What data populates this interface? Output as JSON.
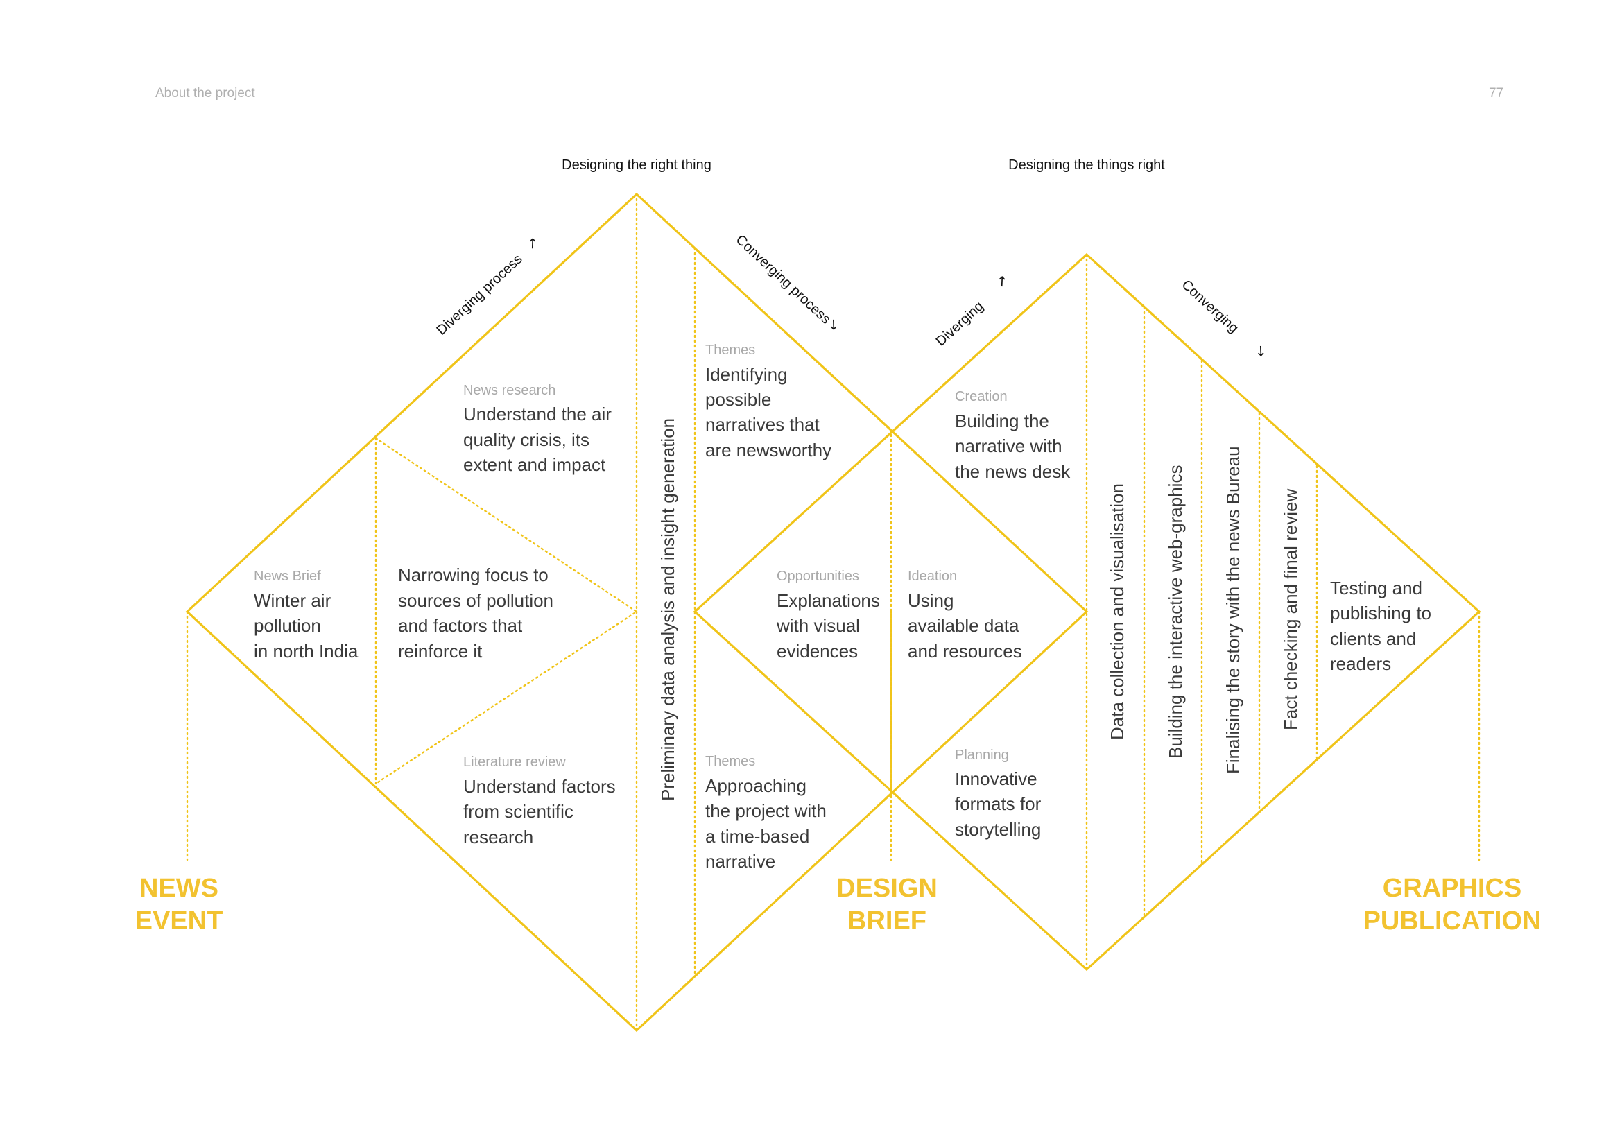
{
  "header": {
    "section": "About the project",
    "page_number": "77"
  },
  "phases": {
    "left": "Designing the right thing",
    "right": "Designing the things right"
  },
  "process_labels": {
    "diverging_process": "Diverging process",
    "converging_process": "Converging process",
    "diverging": "Diverging",
    "converging": "Converging",
    "arrow_ne": "↗",
    "arrow_se": "↘"
  },
  "cells": {
    "news_brief": {
      "label": "News Brief",
      "lines": [
        "Winter air",
        "pollution",
        "in north India"
      ]
    },
    "narrowing": {
      "lines": [
        "Narrowing focus to",
        "sources of pollution",
        "and factors that",
        "reinforce it"
      ]
    },
    "news_research": {
      "label": "News research",
      "lines": [
        "Understand the air",
        "quality crisis, its",
        "extent and impact"
      ]
    },
    "literature_review": {
      "label": "Literature review",
      "lines": [
        "Understand factors",
        "from scientific",
        "research"
      ]
    },
    "themes_top": {
      "label": "Themes",
      "lines": [
        "Identifying",
        "possible",
        "narratives that",
        "are newsworthy"
      ]
    },
    "themes_bottom": {
      "label": "Themes",
      "lines": [
        "Approaching",
        "the project with",
        "a time-based",
        "narrative"
      ]
    },
    "opportunities": {
      "label": "Opportunities",
      "lines": [
        "Explanations",
        "with visual",
        "evidences"
      ]
    },
    "ideation": {
      "label": "Ideation",
      "lines": [
        "Using",
        "available data",
        "and resources"
      ]
    },
    "creation": {
      "label": "Creation",
      "lines": [
        "Building the",
        "narrative with",
        "the news desk"
      ]
    },
    "planning": {
      "label": "Planning",
      "lines": [
        "Innovative",
        "formats for",
        "storytelling"
      ]
    },
    "testing": {
      "lines": [
        "Testing and",
        "publishing to",
        "clients and",
        "readers"
      ]
    }
  },
  "vertical_steps": {
    "preliminary": "Preliminary data analysis and insight generation",
    "data_collection": "Data collection and visualisation",
    "building": "Building the interactive web-graphics",
    "finalising": "Finalising the story with the news Bureau",
    "fact_checking": "Fact checking and final review"
  },
  "milestones": {
    "news_event": [
      "NEWS",
      "EVENT"
    ],
    "design_brief": [
      "DESIGN",
      "BRIEF"
    ],
    "graphics_publication": [
      "GRAPHICS",
      "PUBLICATION"
    ]
  },
  "colors": {
    "accent": "#f0c419",
    "milestone_text": "#f2c230",
    "label_grey": "#a8a8a8",
    "body_text": "#3a3a3a"
  }
}
